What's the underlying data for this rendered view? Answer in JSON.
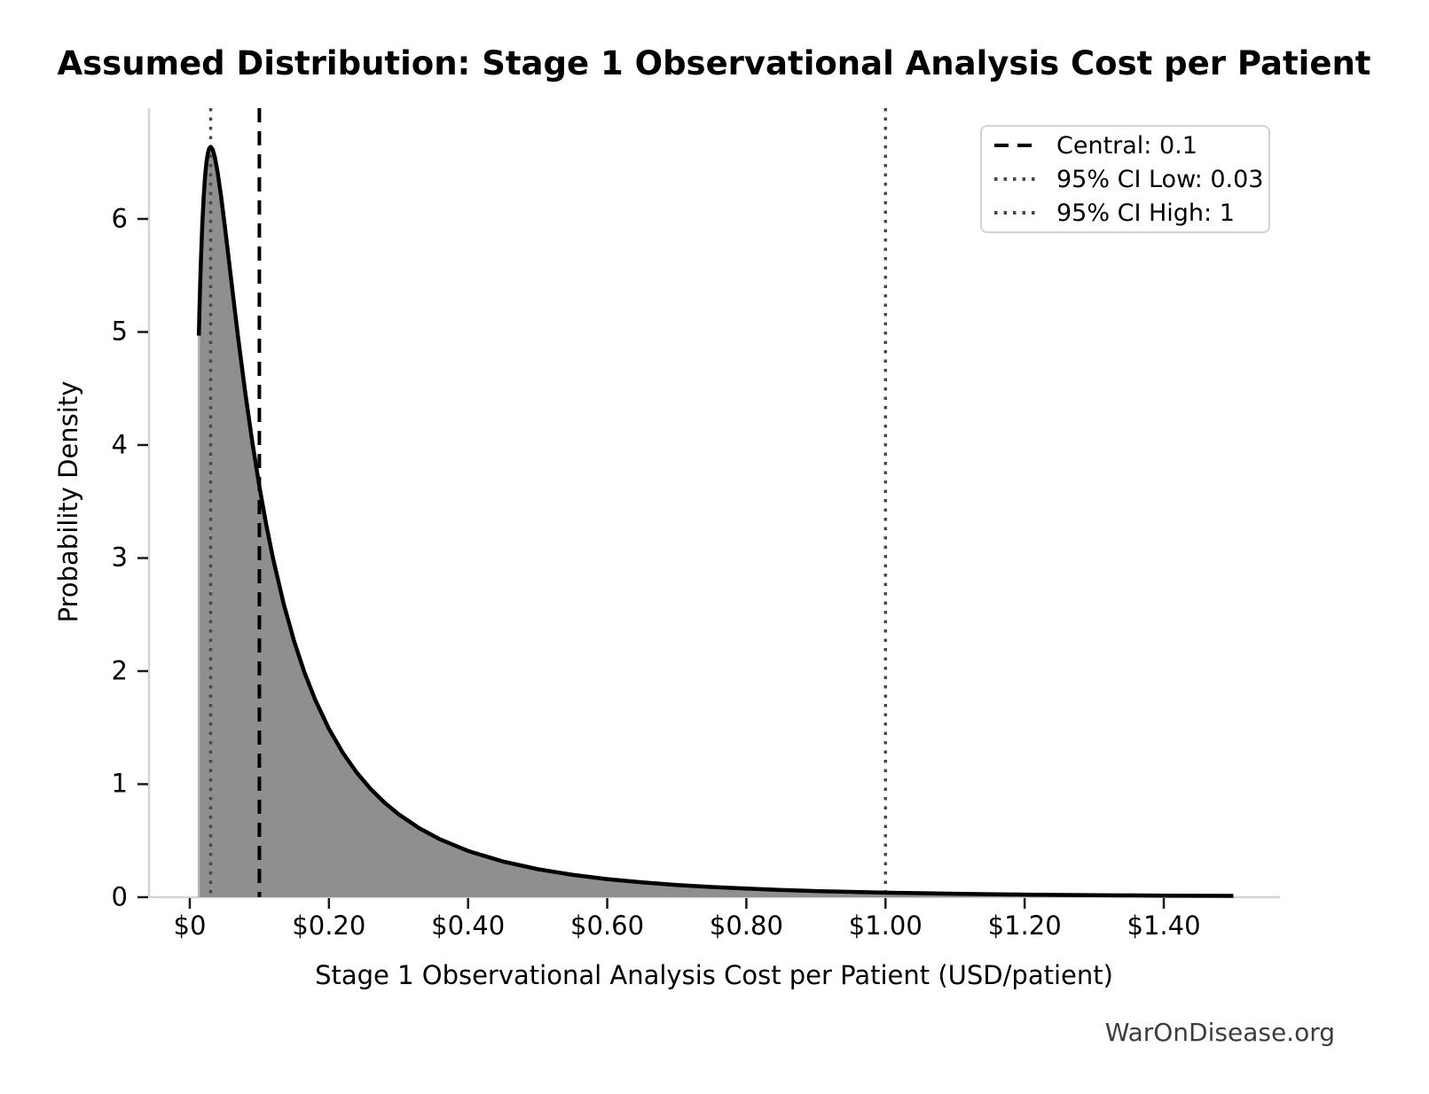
{
  "title": "Assumed Distribution: Stage 1 Observational Analysis Cost per Patient",
  "watermark": "WarOnDisease.org",
  "legend": {
    "items": [
      {
        "label": "Central: 0.1",
        "style": "dashed",
        "color": "#000000"
      },
      {
        "label": "95% CI Low: 0.03",
        "style": "dotted",
        "color": "#4a4a4a"
      },
      {
        "label": "95% CI High: 1",
        "style": "dotted",
        "color": "#4a4a4a"
      }
    ]
  },
  "chart_data": {
    "type": "area",
    "title": "Assumed Distribution: Stage 1 Observational Analysis Cost per Patient",
    "xlabel": "Stage 1 Observational Analysis Cost per Patient (USD/patient)",
    "ylabel": "Probability Density",
    "xlim": [
      -0.0586,
      1.567
    ],
    "ylim": [
      0,
      6.98
    ],
    "grid": false,
    "legend_position": "upper right",
    "x_ticks": {
      "values": [
        0,
        0.2,
        0.4,
        0.6,
        0.8,
        1.0,
        1.2,
        1.4
      ],
      "labels": [
        "$0",
        "$0.20",
        "$0.40",
        "$0.60",
        "$0.80",
        "$1.00",
        "$1.20",
        "$1.40"
      ]
    },
    "y_ticks": {
      "values": [
        0,
        1,
        2,
        3,
        4,
        5,
        6
      ],
      "labels": [
        "0",
        "1",
        "2",
        "3",
        "4",
        "5",
        "6"
      ]
    },
    "series": [
      {
        "name": "pdf",
        "x": [
          0.013,
          0.014,
          0.015,
          0.016,
          0.018,
          0.02,
          0.022,
          0.024,
          0.026,
          0.028,
          0.03,
          0.033,
          0.036,
          0.04,
          0.045,
          0.05,
          0.055,
          0.06,
          0.065,
          0.07,
          0.08,
          0.09,
          0.1,
          0.11,
          0.12,
          0.135,
          0.15,
          0.165,
          0.18,
          0.2,
          0.22,
          0.24,
          0.26,
          0.28,
          0.3,
          0.33,
          0.36,
          0.4,
          0.45,
          0.5,
          0.55,
          0.6,
          0.65,
          0.7,
          0.75,
          0.8,
          0.85,
          0.9,
          0.95,
          1.0,
          1.1,
          1.2,
          1.3,
          1.4,
          1.5
        ],
        "y": [
          4.968,
          5.217,
          5.439,
          5.635,
          5.957,
          6.201,
          6.379,
          6.503,
          6.582,
          6.625,
          6.638,
          6.613,
          6.547,
          6.413,
          6.199,
          5.956,
          5.698,
          5.437,
          5.178,
          4.926,
          4.451,
          4.021,
          3.635,
          3.292,
          2.988,
          2.594,
          2.264,
          1.985,
          1.75,
          1.489,
          1.277,
          1.102,
          0.957,
          0.836,
          0.734,
          0.61,
          0.511,
          0.409,
          0.316,
          0.248,
          0.198,
          0.16,
          0.131,
          0.108,
          0.09,
          0.076,
          0.064,
          0.054,
          0.047,
          0.04,
          0.03,
          0.023,
          0.018,
          0.014,
          0.012
        ]
      }
    ],
    "vlines": [
      {
        "value": 0.1,
        "label": "Central: 0.1",
        "style": "dashed",
        "color": "#000000"
      },
      {
        "value": 0.03,
        "label": "95% CI Low: 0.03",
        "style": "dotted",
        "color": "#4a4a4a"
      },
      {
        "value": 1.0,
        "label": "95% CI High: 1",
        "style": "dotted",
        "color": "#4a4a4a"
      }
    ],
    "colors": {
      "curve": "#000000",
      "fill": "#8f8f8f",
      "fill_edge": "#b7b7b7",
      "spine": "#d4d4d4",
      "tick": "#1a1a1a"
    }
  }
}
